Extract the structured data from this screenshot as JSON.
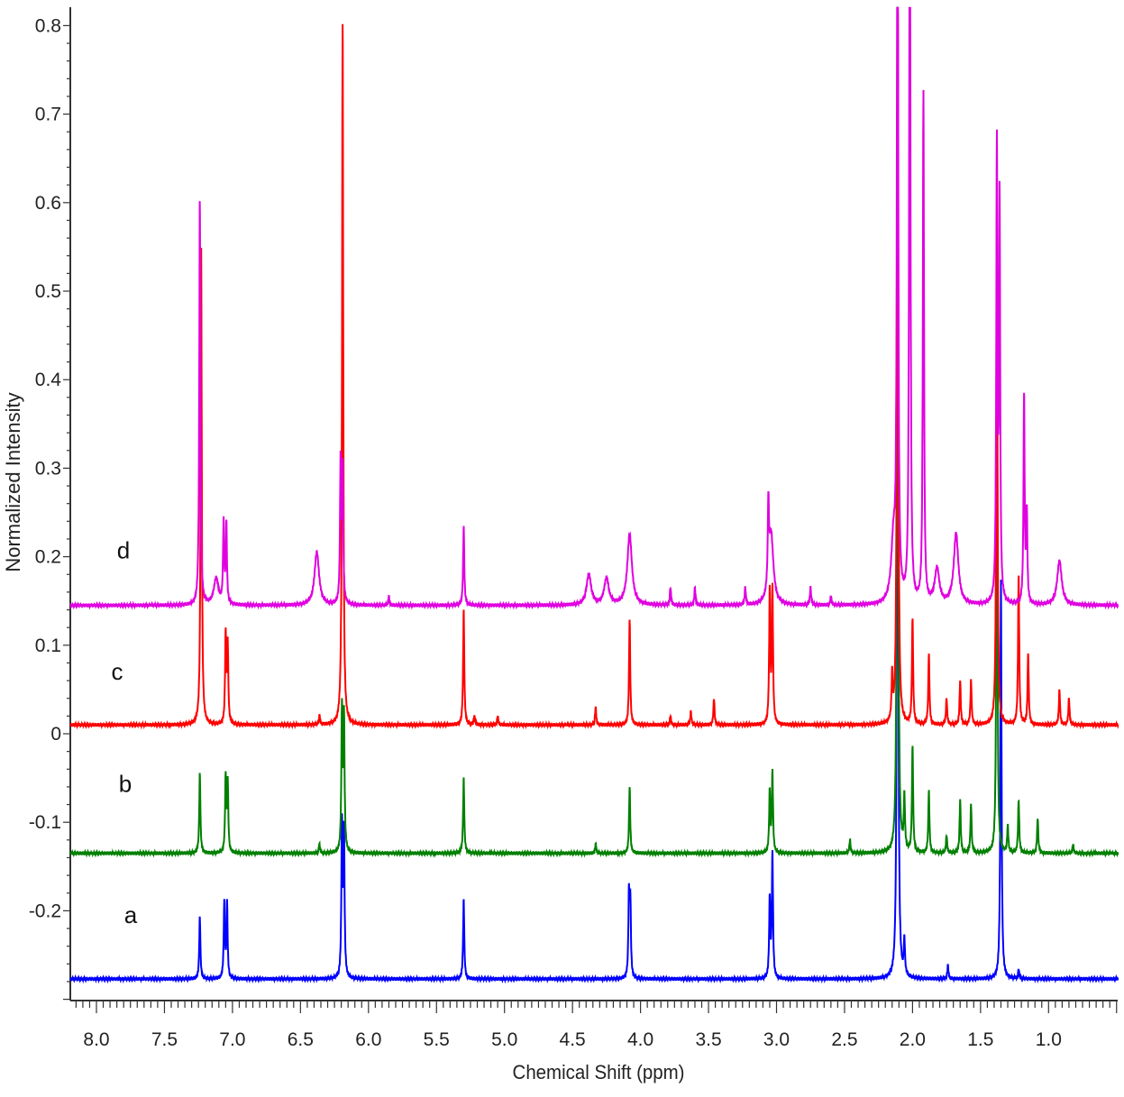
{
  "chart_data": {
    "type": "line",
    "title": "",
    "xlabel": "Chemical Shift (ppm)",
    "ylabel": "Normalized Intensity",
    "xlim": [
      8.19,
      0.49
    ],
    "x_reversed": true,
    "ylim": [
      -0.3,
      0.82
    ],
    "grid": false,
    "x_ticks": [
      "8.0",
      "7.5",
      "7.0",
      "6.5",
      "6.0",
      "5.5",
      "5.0",
      "4.5",
      "4.0",
      "3.5",
      "3.0",
      "2.5",
      "2.0",
      "1.5",
      "1.0"
    ],
    "y_ticks": [
      "0.8",
      "0.7",
      "0.6",
      "0.5",
      "0.4",
      "0.3",
      "0.2",
      "0.1",
      "0",
      "-0.1",
      "-0.2"
    ],
    "series": [
      {
        "name": "a",
        "color": "#0000ff",
        "baseline": -0.277,
        "peaks": [
          [
            7.24,
            0.07
          ],
          [
            7.06,
            0.085
          ],
          [
            7.04,
            0.085
          ],
          [
            6.195,
            0.17
          ],
          [
            6.18,
            0.16
          ],
          [
            5.3,
            0.09
          ],
          [
            4.085,
            0.09
          ],
          [
            4.075,
            0.085
          ],
          [
            3.05,
            0.09
          ],
          [
            3.03,
            0.14
          ],
          [
            2.11,
            1.0
          ],
          [
            2.06,
            0.04
          ],
          [
            1.74,
            0.015
          ],
          [
            1.35,
            0.45
          ],
          [
            1.22,
            0.01
          ]
        ]
      },
      {
        "name": "b",
        "color": "#008000",
        "baseline": -0.135,
        "peaks": [
          [
            7.24,
            0.09
          ],
          [
            7.05,
            0.085
          ],
          [
            7.035,
            0.08
          ],
          [
            6.36,
            0.01
          ],
          [
            6.195,
            0.16
          ],
          [
            6.18,
            0.15
          ],
          [
            5.3,
            0.085
          ],
          [
            4.33,
            0.01
          ],
          [
            4.08,
            0.075
          ],
          [
            3.05,
            0.07
          ],
          [
            3.03,
            0.09
          ],
          [
            2.46,
            0.015
          ],
          [
            2.11,
            1.0
          ],
          [
            2.06,
            0.06
          ],
          [
            2.0,
            0.12
          ],
          [
            1.88,
            0.07
          ],
          [
            1.75,
            0.02
          ],
          [
            1.65,
            0.06
          ],
          [
            1.57,
            0.055
          ],
          [
            1.38,
            0.5
          ],
          [
            1.3,
            0.03
          ],
          [
            1.22,
            0.06
          ],
          [
            1.08,
            0.04
          ],
          [
            0.82,
            0.01
          ]
        ]
      },
      {
        "name": "c",
        "color": "#ff0000",
        "baseline": 0.01,
        "peaks": [
          [
            7.23,
            0.54
          ],
          [
            7.05,
            0.1
          ],
          [
            7.035,
            0.09
          ],
          [
            6.36,
            0.01
          ],
          [
            6.19,
            0.8
          ],
          [
            5.3,
            0.13
          ],
          [
            5.22,
            0.01
          ],
          [
            5.05,
            0.01
          ],
          [
            4.33,
            0.02
          ],
          [
            4.08,
            0.12
          ],
          [
            3.78,
            0.01
          ],
          [
            3.63,
            0.015
          ],
          [
            3.46,
            0.03
          ],
          [
            3.05,
            0.15
          ],
          [
            3.03,
            0.15
          ],
          [
            2.15,
            0.05
          ],
          [
            2.11,
            1.0
          ],
          [
            2.0,
            0.12
          ],
          [
            1.88,
            0.08
          ],
          [
            1.75,
            0.03
          ],
          [
            1.65,
            0.05
          ],
          [
            1.57,
            0.05
          ],
          [
            1.38,
            0.6
          ],
          [
            1.22,
            0.17
          ],
          [
            1.15,
            0.08
          ],
          [
            0.92,
            0.04
          ],
          [
            0.85,
            0.03
          ]
        ]
      },
      {
        "name": "d",
        "color": "#e000e0",
        "baseline": 0.145,
        "peaks": [
          [
            7.24,
            0.46
          ],
          [
            7.12,
            0.03
          ],
          [
            7.065,
            0.09
          ],
          [
            7.045,
            0.09
          ],
          [
            6.38,
            0.06
          ],
          [
            6.205,
            0.16
          ],
          [
            6.19,
            0.15
          ],
          [
            5.85,
            0.01
          ],
          [
            5.3,
            0.09
          ],
          [
            4.38,
            0.035
          ],
          [
            4.25,
            0.03
          ],
          [
            4.08,
            0.08
          ],
          [
            3.78,
            0.02
          ],
          [
            3.6,
            0.02
          ],
          [
            3.23,
            0.02
          ],
          [
            3.06,
            0.09
          ],
          [
            3.04,
            0.08
          ],
          [
            2.75,
            0.02
          ],
          [
            2.6,
            0.01
          ],
          [
            2.14,
            0.07
          ],
          [
            2.11,
            1.0
          ],
          [
            2.02,
            1.0
          ],
          [
            1.92,
            0.575
          ],
          [
            1.82,
            0.04
          ],
          [
            1.68,
            0.08
          ],
          [
            1.38,
            0.51
          ],
          [
            1.36,
            0.45
          ],
          [
            1.18,
            0.235
          ],
          [
            1.16,
            0.1
          ],
          [
            0.92,
            0.05
          ]
        ]
      }
    ]
  }
}
